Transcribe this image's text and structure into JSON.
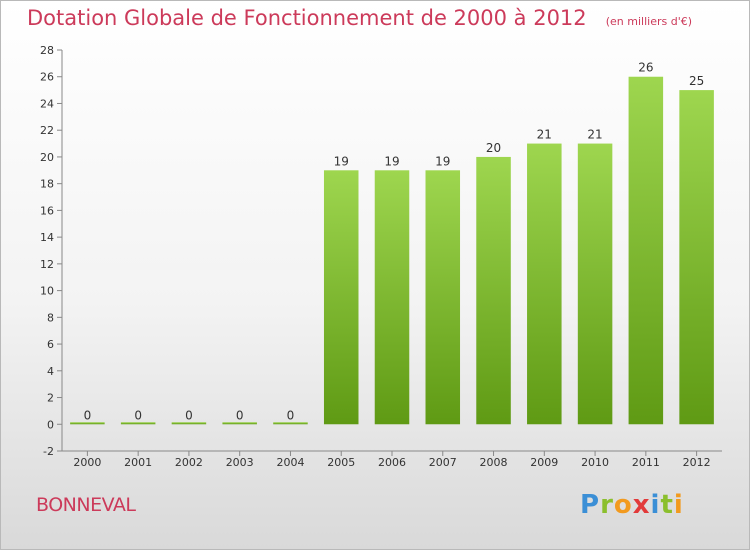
{
  "header": {
    "title": "Dotation Globale de Fonctionnement de 2000 à 2012",
    "unit": "(en milliers d'€)"
  },
  "footer": {
    "commune": "BONNEVAL",
    "logo_text": "Proxiti"
  },
  "colors": {
    "title": "#cc3a5a",
    "bar_top": "#9ed64f",
    "bar_bottom": "#5f9a14",
    "axis": "#888888"
  },
  "chart_data": {
    "type": "bar",
    "title": "Dotation Globale de Fonctionnement de 2000 à 2012",
    "subtitle": "(en milliers d'€)",
    "xlabel": "",
    "ylabel": "",
    "categories": [
      "2000",
      "2001",
      "2002",
      "2003",
      "2004",
      "2005",
      "2006",
      "2007",
      "2008",
      "2009",
      "2010",
      "2011",
      "2012"
    ],
    "values": [
      0,
      0,
      0,
      0,
      0,
      19,
      19,
      19,
      20,
      21,
      21,
      26,
      25
    ],
    "data_labels": [
      "0",
      "0",
      "0",
      "0",
      "0",
      "19",
      "19",
      "19",
      "20",
      "21",
      "21",
      "26",
      "25"
    ],
    "ylim": [
      -2,
      28
    ],
    "yticks": [
      -2,
      0,
      2,
      4,
      6,
      8,
      10,
      12,
      14,
      16,
      18,
      20,
      22,
      24,
      26,
      28
    ],
    "grid": false,
    "legend": "none"
  }
}
